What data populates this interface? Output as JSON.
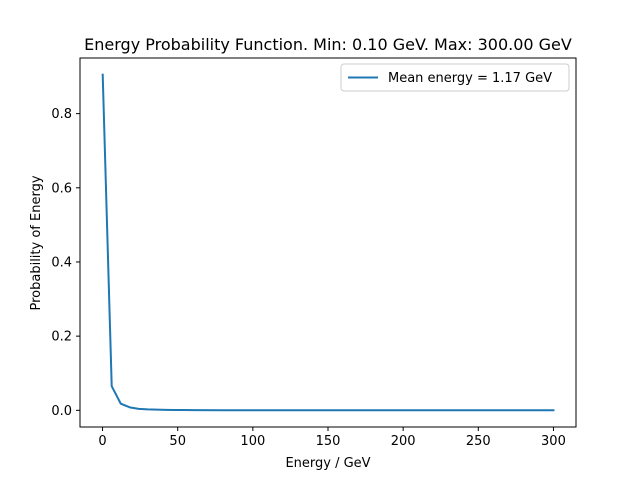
{
  "chart_data": {
    "type": "line",
    "title": "Energy Probability Function. Min: 0.10 GeV. Max: 300.00 GeV",
    "xlabel": "Energy / GeV",
    "ylabel": "Probability of Energy",
    "xlim": [
      -15,
      315
    ],
    "ylim": [
      -0.045,
      0.95
    ],
    "xticks": [
      0,
      50,
      100,
      150,
      200,
      250,
      300
    ],
    "yticks": [
      0.0,
      0.2,
      0.4,
      0.6,
      0.8
    ],
    "xtick_labels": [
      "0",
      "50",
      "100",
      "150",
      "200",
      "250",
      "300"
    ],
    "ytick_labels": [
      "0.0",
      "0.2",
      "0.4",
      "0.6",
      "0.8"
    ],
    "grid": false,
    "legend_position": "top-right",
    "series": [
      {
        "name": "Mean energy = 1.17 GeV",
        "color": "#1f77b4",
        "x": [
          0.1,
          6.1,
          12.1,
          18.1,
          24.1,
          30.1,
          36.1,
          42.1,
          48.1,
          54.1,
          60.1,
          80,
          100,
          150,
          200,
          250,
          300
        ],
        "y": [
          0.905,
          0.065,
          0.018,
          0.008,
          0.004,
          0.0025,
          0.0017,
          0.0012,
          0.0009,
          0.0007,
          0.0005,
          0.0003,
          0.0002,
          0.0001,
          5e-05,
          3e-05,
          2e-05
        ]
      }
    ]
  }
}
